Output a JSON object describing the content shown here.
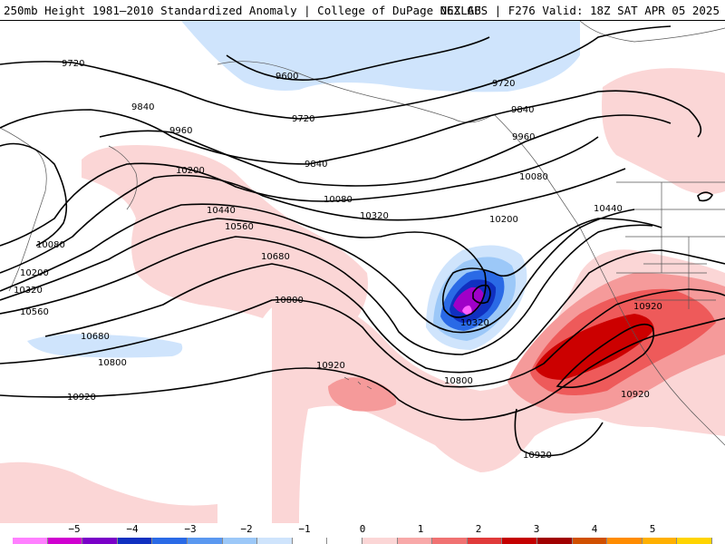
{
  "header": {
    "left_title": "250mb Height 1981–2010 Standardized Anomaly | College of DuPage NEXLAB",
    "right_title": "06Z GFS | F276 Valid: 18Z SAT APR 05 2025"
  },
  "map": {
    "contour_labels": [
      {
        "text": "9720",
        "id": "c1"
      },
      {
        "text": "9600",
        "id": "c2"
      },
      {
        "text": "9720",
        "id": "c3"
      },
      {
        "text": "9720",
        "id": "c4"
      },
      {
        "text": "9840",
        "id": "c5"
      },
      {
        "text": "9960",
        "id": "c6"
      },
      {
        "text": "9840",
        "id": "c7"
      },
      {
        "text": "9840",
        "id": "c8"
      },
      {
        "text": "9960",
        "id": "c9"
      },
      {
        "text": "10080",
        "id": "c10"
      },
      {
        "text": "10200",
        "id": "c11"
      },
      {
        "text": "10080",
        "id": "c12"
      },
      {
        "text": "10320",
        "id": "c13"
      },
      {
        "text": "10200",
        "id": "c14"
      },
      {
        "text": "10440",
        "id": "c15"
      },
      {
        "text": "10560",
        "id": "c16"
      },
      {
        "text": "10440",
        "id": "c17"
      },
      {
        "text": "10680",
        "id": "c18"
      },
      {
        "text": "10080",
        "id": "c19"
      },
      {
        "text": "10200",
        "id": "c20"
      },
      {
        "text": "10320",
        "id": "c21"
      },
      {
        "text": "10800",
        "id": "c22"
      },
      {
        "text": "10560",
        "id": "c23"
      },
      {
        "text": "10320",
        "id": "c24"
      },
      {
        "text": "10920",
        "id": "c25"
      },
      {
        "text": "10680",
        "id": "c26"
      },
      {
        "text": "10800",
        "id": "c27"
      },
      {
        "text": "10920",
        "id": "c28"
      },
      {
        "text": "10800",
        "id": "c29"
      },
      {
        "text": "10920",
        "id": "c30"
      },
      {
        "text": "10920",
        "id": "c31"
      },
      {
        "text": "10920",
        "id": "c32"
      }
    ]
  },
  "colorbar": {
    "tick_labels": [
      "−5",
      "−4",
      "−3",
      "−2",
      "−1",
      "0",
      "1",
      "2",
      "3",
      "4",
      "5"
    ],
    "colors": [
      "#ff80ff",
      "#d000d0",
      "#7a00c8",
      "#1030c0",
      "#2a6ae6",
      "#5a98f0",
      "#9cc8f8",
      "#cfe4fc",
      "#ffffff",
      "#ffffff",
      "#fbd6d6",
      "#f8a9a9",
      "#f07272",
      "#e03a3a",
      "#c40000",
      "#a00000",
      "#d05000",
      "#ff8c00",
      "#ffb000",
      "#ffd400"
    ]
  },
  "colors": {
    "neg1": "#cfe4fc",
    "neg2": "#9cc8f8",
    "neg3": "#2a6ae6",
    "neg4": "#1030c0",
    "neg5": "#a000c8",
    "neg6": "#ff60ff",
    "pos1": "#fbd6d6",
    "pos2": "#f59a9a",
    "pos3": "#ee5a5a",
    "pos4": "#cc0000"
  }
}
